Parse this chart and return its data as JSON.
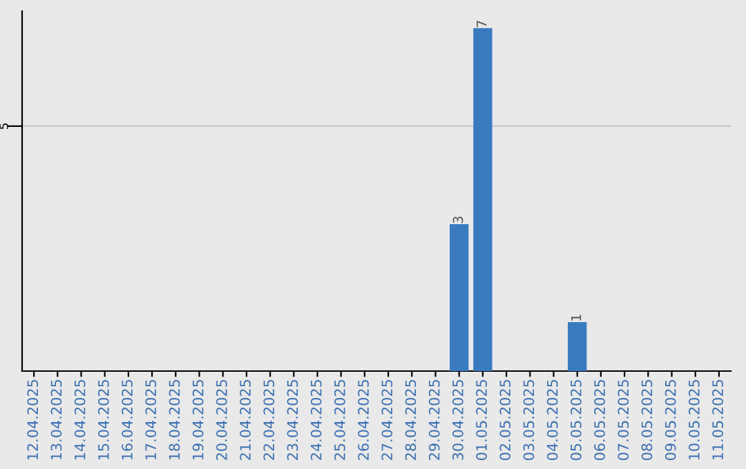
{
  "chart_data": {
    "type": "bar",
    "categories": [
      "12.04.2025",
      "13.04.2025",
      "14.04.2025",
      "15.04.2025",
      "16.04.2025",
      "17.04.2025",
      "18.04.2025",
      "19.04.2025",
      "20.04.2025",
      "21.04.2025",
      "22.04.2025",
      "23.04.2025",
      "24.04.2025",
      "25.04.2025",
      "26.04.2025",
      "27.04.2025",
      "28.04.2025",
      "29.04.2025",
      "30.04.2025",
      "01.05.2025",
      "02.05.2025",
      "03.05.2025",
      "04.05.2025",
      "05.05.2025",
      "06.05.2025",
      "07.05.2025",
      "08.05.2025",
      "09.05.2025",
      "10.05.2025",
      "11.05.2025"
    ],
    "values": [
      null,
      null,
      null,
      null,
      null,
      null,
      null,
      null,
      null,
      null,
      null,
      null,
      null,
      null,
      null,
      null,
      null,
      null,
      3,
      7,
      null,
      null,
      null,
      1,
      null,
      null,
      null,
      null,
      null,
      null
    ],
    "value_labels": [
      null,
      null,
      null,
      null,
      null,
      null,
      null,
      null,
      null,
      null,
      null,
      null,
      null,
      null,
      null,
      null,
      null,
      null,
      "3",
      "7",
      null,
      null,
      null,
      "1",
      null,
      null,
      null,
      null,
      null,
      null
    ],
    "color": "#3a7bc0",
    "ylim": [
      0,
      7.35
    ],
    "ref_lines": [
      {
        "axis": "y",
        "value": 5,
        "label": "5",
        "color": "#c8c8c8"
      }
    ]
  }
}
